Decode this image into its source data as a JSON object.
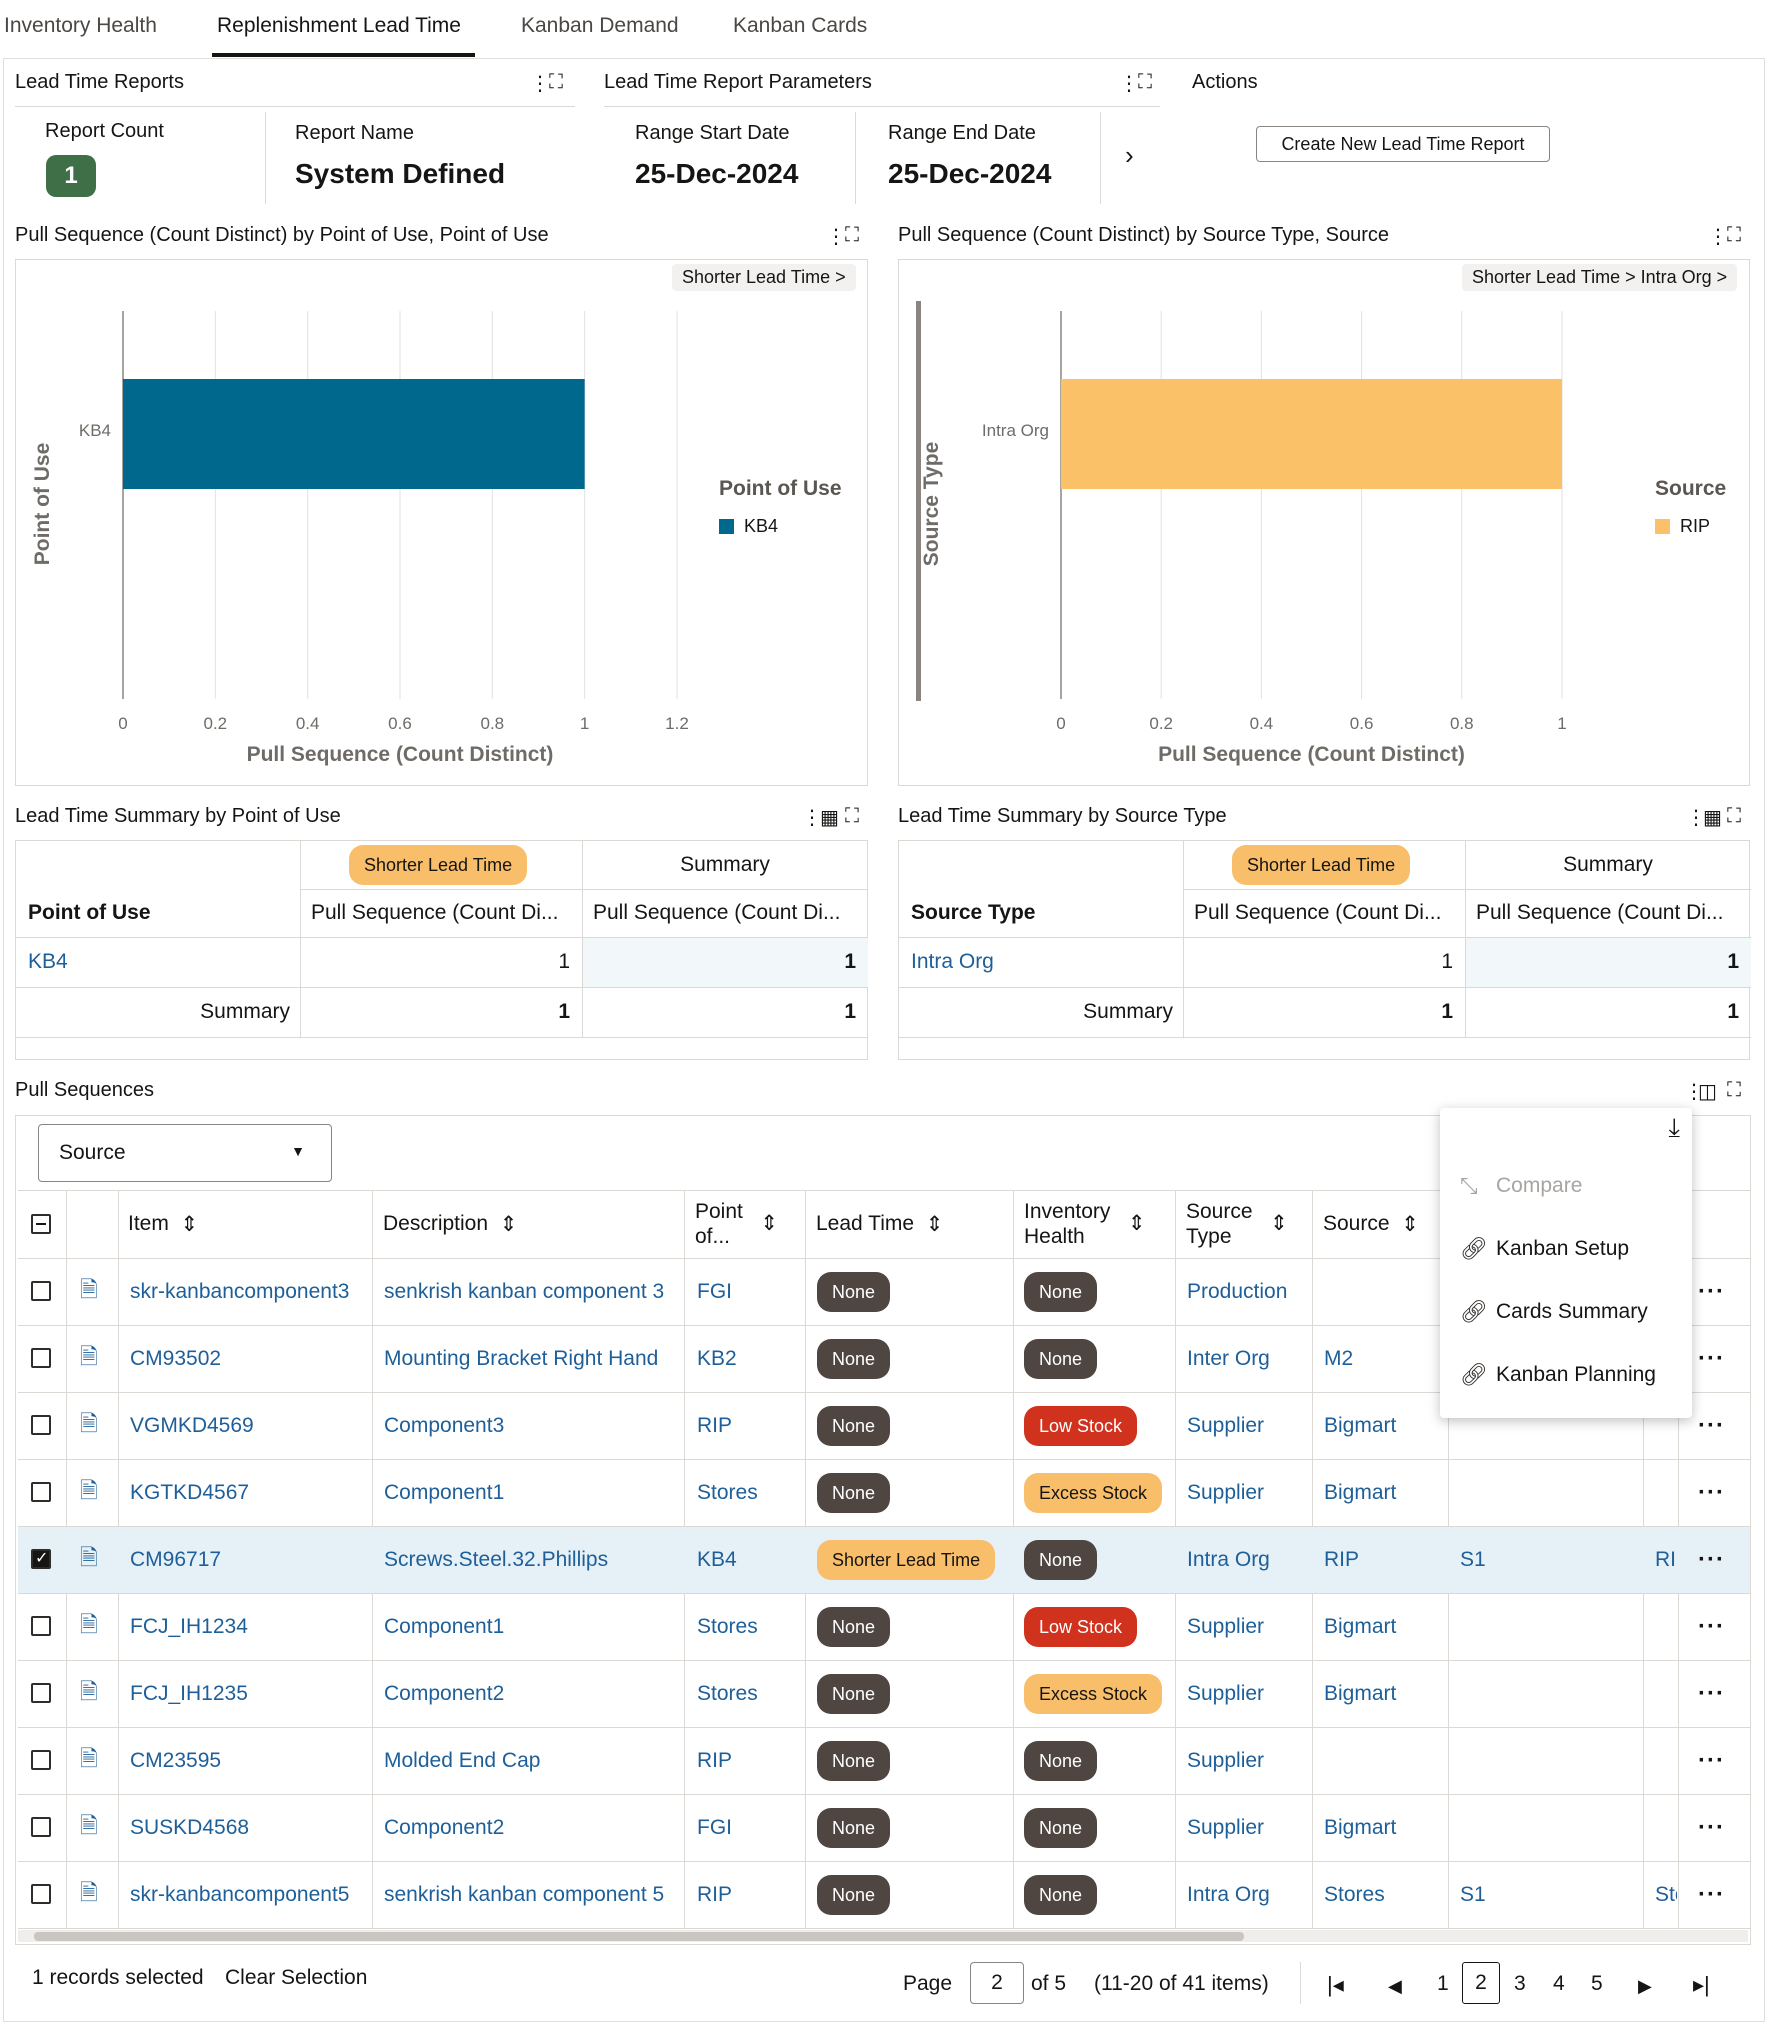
{
  "tabs": [
    "Inventory Health",
    "Replenishment Lead Time",
    "Kanban Demand",
    "Kanban Cards"
  ],
  "reports": {
    "title": "Lead Time Reports",
    "count_label": "Report Count",
    "count": "1",
    "name_label": "Report Name",
    "name": "System Defined"
  },
  "params": {
    "title": "Lead Time Report Parameters",
    "start_label": "Range Start Date",
    "start": "25-Dec-2024",
    "end_label": "Range End Date",
    "end": "25-Dec-2024"
  },
  "actions": {
    "title": "Actions",
    "create": "Create New Lead Time Report"
  },
  "chart1": {
    "title": "Pull Sequence (Count Distinct) by Point of Use, Point of Use",
    "crumb": "Shorter Lead Time >",
    "legend_title": "Point of Use"
  },
  "chart2": {
    "title": "Pull Sequence (Count Distinct) by Source Type, Source",
    "crumb": "Shorter Lead Time > Intra Org >",
    "legend_title": "Source"
  },
  "chart_data": [
    {
      "type": "bar",
      "orientation": "horizontal",
      "categories": [
        "KB4"
      ],
      "series": [
        {
          "name": "KB4",
          "values": [
            1
          ],
          "color": "#00688c"
        }
      ],
      "xlabel": "Pull Sequence (Count Distinct)",
      "ylabel": "Point of Use",
      "xlim": [
        0,
        1.2
      ],
      "xticks": [
        "0",
        "0.2",
        "0.4",
        "0.6",
        "0.8",
        "1",
        "1.2"
      ],
      "grid": true,
      "legend": "right"
    },
    {
      "type": "bar",
      "orientation": "horizontal",
      "categories": [
        "Intra Org"
      ],
      "series": [
        {
          "name": "RIP",
          "values": [
            1
          ],
          "color": "#fac168"
        }
      ],
      "xlabel": "Pull Sequence (Count Distinct)",
      "ylabel": "Source Type",
      "xlim": [
        0,
        1
      ],
      "xticks": [
        "0",
        "0.2",
        "0.4",
        "0.6",
        "0.8",
        "1"
      ],
      "grid": true,
      "legend": "right"
    }
  ],
  "sum1": {
    "title": "Lead Time Summary by Point of Use",
    "group1": "Shorter Lead Time",
    "group2": "Summary",
    "col0": "Point of Use",
    "col1": "Pull Sequence (Count Di...",
    "col2": "Pull Sequence (Count Di...",
    "row_label": "KB4",
    "row_v1": "1",
    "row_v2": "1",
    "sum_label": "Summary",
    "sum_v1": "1",
    "sum_v2": "1"
  },
  "sum2": {
    "title": "Lead Time Summary by Source Type",
    "group1": "Shorter Lead Time",
    "group2": "Summary",
    "col0": "Source Type",
    "col1": "Pull Sequence (Count Di...",
    "col2": "Pull Sequence (Count Di...",
    "row_label": "Intra Org",
    "row_v1": "1",
    "row_v2": "1",
    "sum_label": "Summary",
    "sum_v1": "1",
    "sum_v2": "1"
  },
  "pull": {
    "title": "Pull Sequences",
    "filter": "Source",
    "headers": {
      "item": "Item",
      "desc": "Description",
      "pou": "Point of...",
      "pou1": "Point",
      "pou2": "of...",
      "lead": "Lead Time",
      "inv1": "Inventory",
      "inv2": "Health",
      "st1": "Source",
      "st2": "Type",
      "src": "Source"
    },
    "rows": [
      {
        "item": "skr-kanbancomponent3",
        "desc": "senkrish kanban component 3",
        "pou": "FGI",
        "lead": "None",
        "inv": "None",
        "stype": "Production",
        "src": "",
        "c8": "",
        "c9": "",
        "checked": false
      },
      {
        "item": "CM93502",
        "desc": "Mounting Bracket Right Hand",
        "pou": "KB2",
        "lead": "None",
        "inv": "None",
        "stype": "Inter Org",
        "src": "M2",
        "c8": "",
        "c9": "",
        "checked": false
      },
      {
        "item": "VGMKD4569",
        "desc": "Component3",
        "pou": "RIP",
        "lead": "None",
        "inv": "Low Stock",
        "stype": "Supplier",
        "src": "Bigmart",
        "c8": "",
        "c9": "",
        "checked": false
      },
      {
        "item": "KGTKD4567",
        "desc": "Component1",
        "pou": "Stores",
        "lead": "None",
        "inv": "Excess Stock",
        "stype": "Supplier",
        "src": "Bigmart",
        "c8": "",
        "c9": "",
        "checked": false
      },
      {
        "item": "CM96717",
        "desc": "Screws.Steel.32.Phillips",
        "pou": "KB4",
        "lead": "Shorter Lead Time",
        "inv": "None",
        "stype": "Intra Org",
        "src": "RIP",
        "c8": "S1",
        "c9": "RII",
        "checked": true
      },
      {
        "item": "FCJ_IH1234",
        "desc": "Component1",
        "pou": "Stores",
        "lead": "None",
        "inv": "Low Stock",
        "stype": "Supplier",
        "src": "Bigmart",
        "c8": "",
        "c9": "",
        "checked": false
      },
      {
        "item": "FCJ_IH1235",
        "desc": "Component2",
        "pou": "Stores",
        "lead": "None",
        "inv": "Excess Stock",
        "stype": "Supplier",
        "src": "Bigmart",
        "c8": "",
        "c9": "",
        "checked": false
      },
      {
        "item": "CM23595",
        "desc": "Molded End Cap",
        "pou": "RIP",
        "lead": "None",
        "inv": "None",
        "stype": "Supplier",
        "src": "",
        "c8": "",
        "c9": "",
        "checked": false
      },
      {
        "item": "SUSKD4568",
        "desc": "Component2",
        "pou": "FGI",
        "lead": "None",
        "inv": "None",
        "stype": "Supplier",
        "src": "Bigmart",
        "c8": "",
        "c9": "",
        "checked": false
      },
      {
        "item": "skr-kanbancomponent5",
        "desc": "senkrish kanban component 5",
        "pou": "RIP",
        "lead": "None",
        "inv": "None",
        "stype": "Intra Org",
        "src": "Stores",
        "c8": "S1",
        "c9": "Stc",
        "checked": false
      }
    ]
  },
  "menu": {
    "compare": "Compare",
    "setup": "Kanban Setup",
    "cards": "Cards Summary",
    "planning": "Kanban Planning"
  },
  "footer": {
    "selected": "1 records selected",
    "clear": "Clear Selection",
    "page_label": "Page",
    "page": "2",
    "of": "of 5",
    "range": "(11-20 of 41 items)",
    "pages": [
      "1",
      "2",
      "3",
      "4",
      "5"
    ]
  }
}
